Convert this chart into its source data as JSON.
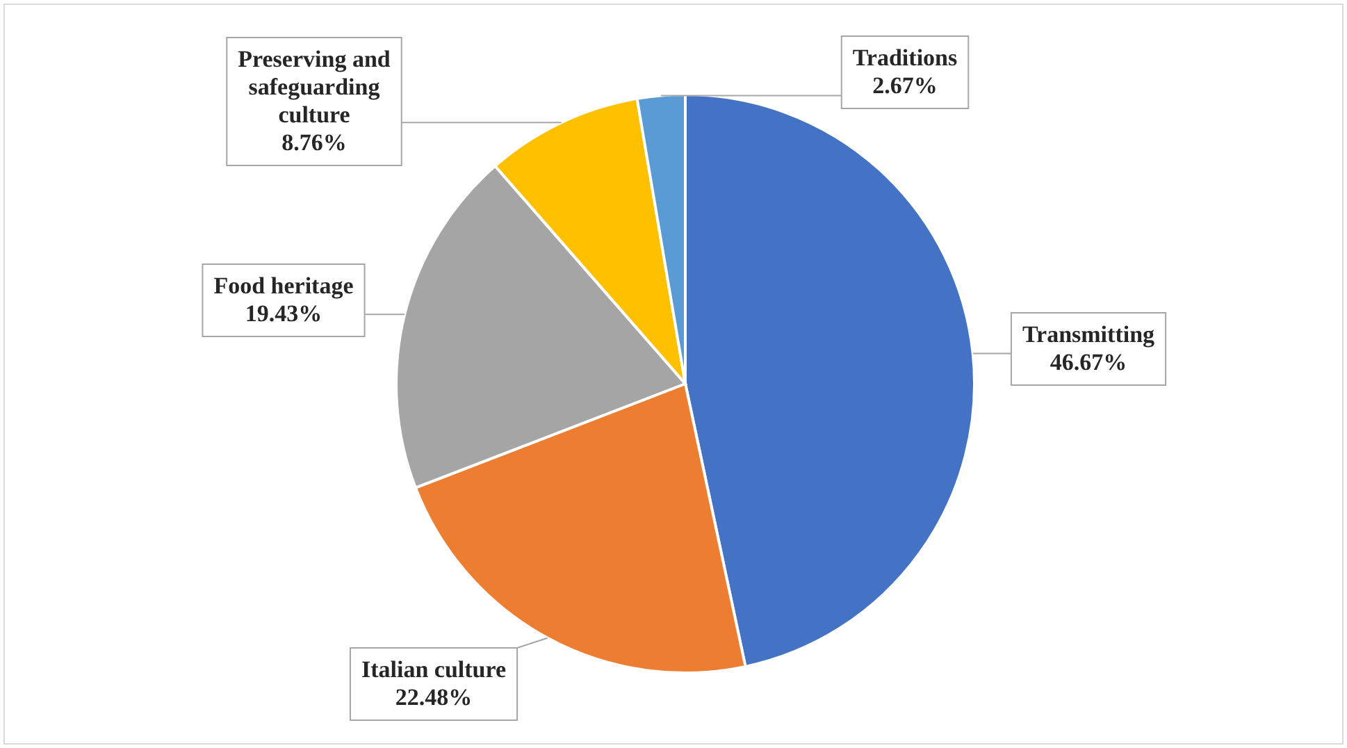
{
  "chart_data": {
    "type": "pie",
    "categories": [
      "Transmitting",
      "Italian culture",
      "Food heritage",
      "Preserving and safeguarding culture",
      "Traditions"
    ],
    "values": [
      46.67,
      22.48,
      19.43,
      8.76,
      2.67
    ],
    "value_labels": [
      "46.67%",
      "22.48%",
      "19.43%",
      "8.76%",
      "2.67%"
    ],
    "colors": [
      "#4472c4",
      "#ed7d31",
      "#a5a5a5",
      "#ffc000",
      "#5b9bd5"
    ]
  }
}
